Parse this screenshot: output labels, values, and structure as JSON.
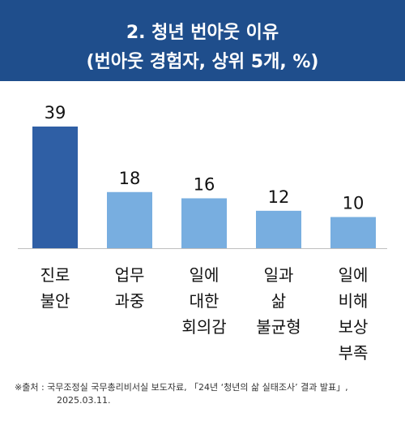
{
  "header": {
    "title": "2. 청년 번아웃 이유",
    "subtitle": "(번아웃 경험자, 상위 5개, %)"
  },
  "colors": {
    "header_bg": "#1f4e8c",
    "highlight_bar": "#2f5fa5",
    "bar": "#78aee0"
  },
  "chart_data": {
    "type": "bar",
    "title": "2. 청년 번아웃 이유",
    "subtitle": "(번아웃 경험자, 상위 5개, %)",
    "categories": [
      [
        "진로",
        "불안"
      ],
      [
        "업무",
        "과중"
      ],
      [
        "일에",
        "대한",
        "회의감"
      ],
      [
        "일과",
        "삶",
        "불균형"
      ],
      [
        "일에",
        "비해",
        "보상",
        "부족"
      ]
    ],
    "values": [
      39,
      18,
      16,
      12,
      10
    ],
    "ylim": [
      0,
      39
    ],
    "grid": false,
    "legend": "none"
  },
  "footnote": {
    "line1": "※출처 : 국무조정실 국무총리비서실 보도자료, 「24년 ‘청년의 삶 실태조사’ 결과 발표」,",
    "line2": "2025.03.11."
  }
}
